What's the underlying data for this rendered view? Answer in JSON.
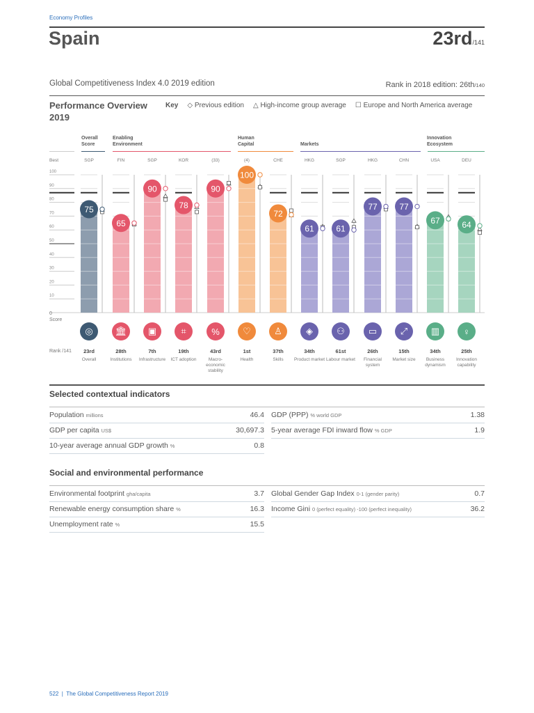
{
  "header": {
    "section": "Economy Profiles",
    "country": "Spain",
    "rank": "23rd",
    "rank_of": "/141",
    "edition": "Global Competitiveness Index 4.0 2019 edition",
    "prev_rank_label": "Rank in 2018 edition: 26th",
    "prev_rank_of": "/140"
  },
  "overview": {
    "title": "Performance Overview",
    "year": "2019",
    "key_label": "Key",
    "key_items": [
      "◇ Previous edition",
      "△ High-income group average",
      "☐ Europe and North America average"
    ]
  },
  "groups": [
    {
      "label": "Overall\nScore",
      "color": "#3e5a73"
    },
    {
      "label": "Enabling\nEnvironment",
      "color": "#e4566a"
    },
    {
      "label": "Human\nCapital",
      "color": "#f08a3c"
    },
    {
      "label": "Markets",
      "color": "#6a63ad"
    },
    {
      "label": "Innovation\nEcosystem",
      "color": "#5aae88"
    }
  ],
  "axis": {
    "best_label": "Best",
    "score_label": "0\nScore",
    "rank_label": "Rank /141",
    "ticks": [
      "100",
      "90",
      "80",
      "70",
      "60",
      "50",
      "40",
      "30",
      "20",
      "10"
    ]
  },
  "chart_data": {
    "type": "bar",
    "ylim": [
      0,
      100
    ],
    "categories": [
      "Overall",
      "Institutions",
      "Infrastructure",
      "ICT adoption",
      "Macro-economic stability",
      "Health",
      "Skills",
      "Product market",
      "Labour market",
      "Financial system",
      "Market size",
      "Business dynamism",
      "Innovation capability"
    ],
    "group_index": [
      0,
      1,
      1,
      1,
      1,
      2,
      2,
      3,
      3,
      3,
      3,
      4,
      4
    ],
    "best": [
      "SGP",
      "FIN",
      "SGP",
      "KOR",
      "(33)",
      "(4)",
      "CHE",
      "HKG",
      "SGP",
      "HKG",
      "CHN",
      "USA",
      "DEU"
    ],
    "values": [
      75,
      65,
      90,
      78,
      90,
      100,
      72,
      61,
      61,
      77,
      77,
      67,
      64
    ],
    "previous_edition": [
      75,
      65,
      90,
      78,
      90,
      100,
      71,
      61,
      60,
      77,
      77,
      68,
      63
    ],
    "high_income_avg": [
      74,
      64,
      84,
      76,
      93,
      91,
      70,
      62,
      66,
      76,
      62,
      69,
      60
    ],
    "europe_na_avg": [
      73,
      64,
      82,
      73,
      94,
      91,
      74,
      62,
      62,
      75,
      62,
      68,
      58
    ],
    "ranks": [
      "23rd",
      "28th",
      "7th",
      "19th",
      "43rd",
      "1st",
      "37th",
      "34th",
      "61st",
      "26th",
      "15th",
      "34th",
      "25th"
    ],
    "icons": [
      "target-icon",
      "bank-icon",
      "train-icon",
      "chip-icon",
      "percent-icon",
      "heart-icon",
      "graduate-icon",
      "tag-icon",
      "people-icon",
      "card-icon",
      "expand-icon",
      "building-icon",
      "bulb-icon"
    ]
  },
  "contextual": {
    "title": "Selected contextual indicators",
    "rows": [
      {
        "label": "Population",
        "unit": "millions",
        "value": "46.4"
      },
      {
        "label": "GDP (PPP)",
        "unit": "% world GDP",
        "value": "1.38"
      },
      {
        "label": "GDP per capita",
        "unit": "US$",
        "value": "30,697.3"
      },
      {
        "label": "5-year average FDI inward flow",
        "unit": "% GDP",
        "value": "1.9"
      },
      {
        "label": "10-year average annual GDP growth",
        "unit": "%",
        "value": "0.8"
      }
    ]
  },
  "social": {
    "title": "Social and environmental performance",
    "rows": [
      {
        "label": "Environmental footprint",
        "unit": "gha/capita",
        "value": "3.7"
      },
      {
        "label": "Global Gender Gap Index",
        "unit": "0-1 (gender parity)",
        "value": "0.7"
      },
      {
        "label": "Renewable energy consumption share",
        "unit": "%",
        "value": "16.3"
      },
      {
        "label": "Income Gini",
        "unit": "0 (perfect equality) -100 (perfect inequality)",
        "value": "36.2"
      },
      {
        "label": "Unemployment rate",
        "unit": "%",
        "value": "15.5"
      }
    ]
  },
  "footer": {
    "page": "522",
    "title": "The Global Competitiveness Report 2019"
  }
}
